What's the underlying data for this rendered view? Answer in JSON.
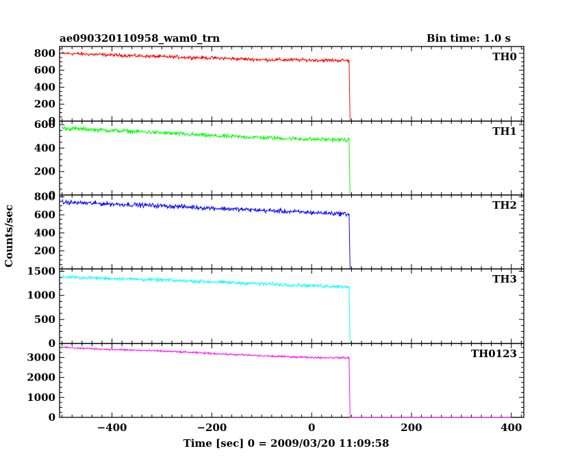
{
  "header": {
    "title": "ae090320110958_wam0_trn",
    "bin_time": "Bin time: 1.0 s"
  },
  "axes": {
    "xlabel": "Time [sec] 0 = 2009/03/20 11:09:58",
    "ylabel": "Counts/sec"
  },
  "chart_data": {
    "type": "line",
    "title": "ae090320110958_wam0_trn",
    "xlabel": "Time [sec] 0 = 2009/03/20 11:09:58",
    "ylabel": "Counts/sec",
    "xlim": [
      -505,
      425
    ],
    "xticks": [
      -400,
      -200,
      0,
      200,
      400
    ],
    "grid": false,
    "series": [
      {
        "name": "TH0",
        "color": "#ff0000",
        "ylim": [
          0,
          880
        ],
        "yticks": [
          0,
          200,
          400,
          600,
          800
        ],
        "x": [
          -500,
          -400,
          -300,
          -200,
          -100,
          0,
          75,
          77,
          80,
          400
        ],
        "values": [
          800,
          780,
          760,
          745,
          725,
          720,
          715,
          0,
          0,
          0
        ],
        "noise": 20
      },
      {
        "name": "TH1",
        "color": "#00ff00",
        "ylim": [
          0,
          630
        ],
        "yticks": [
          0,
          200,
          400,
          600
        ],
        "x": [
          -500,
          -400,
          -300,
          -200,
          -100,
          0,
          75,
          77,
          80,
          400
        ],
        "values": [
          570,
          550,
          530,
          505,
          490,
          475,
          470,
          0,
          0,
          0
        ],
        "noise": 18
      },
      {
        "name": "TH2",
        "color": "#0000ff",
        "ylim": [
          0,
          820
        ],
        "yticks": [
          200,
          400,
          600,
          800
        ],
        "x": [
          -500,
          -400,
          -300,
          -200,
          -100,
          0,
          75,
          77,
          80,
          400
        ],
        "values": [
          740,
          720,
          700,
          675,
          650,
          625,
          610,
          0,
          0,
          0
        ],
        "noise": 25
      },
      {
        "name": "TH3",
        "color": "#00ffff",
        "ylim": [
          0,
          1550
        ],
        "yticks": [
          0,
          500,
          1000,
          1500
        ],
        "x": [
          -500,
          -400,
          -300,
          -200,
          -100,
          0,
          75,
          77,
          80,
          400
        ],
        "values": [
          1380,
          1350,
          1320,
          1280,
          1240,
          1200,
          1180,
          0,
          0,
          0
        ],
        "noise": 35
      },
      {
        "name": "TH0123",
        "color": "#ff00ff",
        "ylim": [
          0,
          3700
        ],
        "yticks": [
          0,
          1000,
          2000,
          3000
        ],
        "x": [
          -500,
          -400,
          -300,
          -200,
          -100,
          0,
          75,
          77,
          80,
          400
        ],
        "values": [
          3500,
          3400,
          3320,
          3200,
          3080,
          3000,
          2980,
          0,
          0,
          0
        ],
        "noise": 45
      }
    ]
  }
}
